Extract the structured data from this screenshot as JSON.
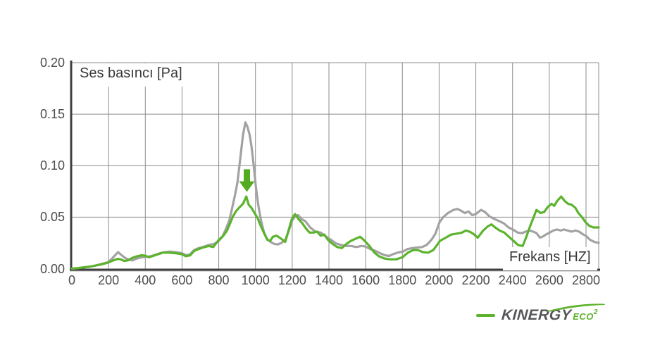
{
  "chart_data": {
    "type": "line",
    "title": "Ses basıncı [Pa]",
    "xlabel": "Frekans [HZ]",
    "ylabel": "",
    "xlim": [
      0,
      2869
    ],
    "ylim": [
      0,
      0.2
    ],
    "grid": true,
    "x_ticks": [
      0,
      200,
      400,
      600,
      800,
      1000,
      1200,
      1400,
      1600,
      1800,
      2000,
      2200,
      2400,
      2600,
      2800
    ],
    "y_ticks": [
      "0.00",
      "0.05",
      "0.10",
      "0.15",
      "0.20"
    ],
    "legend_position": "bottom-right-logo",
    "series": [
      {
        "id": "gray-line",
        "color": "#a2a2a4",
        "points": [
          [
            0,
            0
          ],
          [
            30,
            0.0005
          ],
          [
            60,
            0.0012
          ],
          [
            100,
            0.002
          ],
          [
            130,
            0.003
          ],
          [
            160,
            0.0045
          ],
          [
            195,
            0.006
          ],
          [
            215,
            0.009
          ],
          [
            235,
            0.013
          ],
          [
            252,
            0.016
          ],
          [
            268,
            0.0135
          ],
          [
            285,
            0.011
          ],
          [
            305,
            0.009
          ],
          [
            330,
            0.008
          ],
          [
            355,
            0.01
          ],
          [
            380,
            0.011
          ],
          [
            405,
            0.0115
          ],
          [
            430,
            0.012
          ],
          [
            455,
            0.0135
          ],
          [
            480,
            0.015
          ],
          [
            505,
            0.016
          ],
          [
            535,
            0.0165
          ],
          [
            565,
            0.016
          ],
          [
            600,
            0.015
          ],
          [
            622,
            0.013
          ],
          [
            645,
            0.014
          ],
          [
            665,
            0.018
          ],
          [
            690,
            0.02
          ],
          [
            715,
            0.021
          ],
          [
            745,
            0.023
          ],
          [
            775,
            0.024
          ],
          [
            800,
            0.027
          ],
          [
            820,
            0.031
          ],
          [
            840,
            0.039
          ],
          [
            858,
            0.047
          ],
          [
            872,
            0.058
          ],
          [
            888,
            0.071
          ],
          [
            902,
            0.084
          ],
          [
            918,
            0.108
          ],
          [
            932,
            0.13
          ],
          [
            945,
            0.142
          ],
          [
            956,
            0.138
          ],
          [
            968,
            0.13
          ],
          [
            978,
            0.119
          ],
          [
            990,
            0.101
          ],
          [
            1002,
            0.08
          ],
          [
            1015,
            0.062
          ],
          [
            1030,
            0.047
          ],
          [
            1045,
            0.036
          ],
          [
            1062,
            0.029
          ],
          [
            1082,
            0.026
          ],
          [
            1102,
            0.024
          ],
          [
            1122,
            0.0235
          ],
          [
            1142,
            0.025
          ],
          [
            1162,
            0.028
          ],
          [
            1180,
            0.036
          ],
          [
            1200,
            0.047
          ],
          [
            1218,
            0.051
          ],
          [
            1232,
            0.052
          ],
          [
            1252,
            0.048
          ],
          [
            1272,
            0.046
          ],
          [
            1298,
            0.04
          ],
          [
            1325,
            0.036
          ],
          [
            1355,
            0.035
          ],
          [
            1385,
            0.031
          ],
          [
            1412,
            0.028
          ],
          [
            1438,
            0.0245
          ],
          [
            1465,
            0.023
          ],
          [
            1492,
            0.022
          ],
          [
            1520,
            0.022
          ],
          [
            1550,
            0.021
          ],
          [
            1578,
            0.022
          ],
          [
            1600,
            0.0215
          ],
          [
            1625,
            0.019
          ],
          [
            1650,
            0.0175
          ],
          [
            1678,
            0.015
          ],
          [
            1705,
            0.013
          ],
          [
            1728,
            0.0123
          ],
          [
            1752,
            0.0143
          ],
          [
            1778,
            0.0157
          ],
          [
            1802,
            0.0165
          ],
          [
            1828,
            0.019
          ],
          [
            1855,
            0.02
          ],
          [
            1882,
            0.0205
          ],
          [
            1908,
            0.021
          ],
          [
            1932,
            0.023
          ],
          [
            1958,
            0.028
          ],
          [
            1980,
            0.034
          ],
          [
            2002,
            0.045
          ],
          [
            2022,
            0.05
          ],
          [
            2048,
            0.054
          ],
          [
            2078,
            0.057
          ],
          [
            2100,
            0.058
          ],
          [
            2122,
            0.056
          ],
          [
            2140,
            0.054
          ],
          [
            2160,
            0.0555
          ],
          [
            2180,
            0.052
          ],
          [
            2200,
            0.053
          ],
          [
            2228,
            0.057
          ],
          [
            2250,
            0.055
          ],
          [
            2272,
            0.051
          ],
          [
            2298,
            0.0485
          ],
          [
            2328,
            0.046
          ],
          [
            2352,
            0.044
          ],
          [
            2378,
            0.04
          ],
          [
            2402,
            0.038
          ],
          [
            2428,
            0.035
          ],
          [
            2452,
            0.0345
          ],
          [
            2472,
            0.036
          ],
          [
            2492,
            0.037
          ],
          [
            2512,
            0.036
          ],
          [
            2530,
            0.0345
          ],
          [
            2550,
            0.03
          ],
          [
            2568,
            0.0315
          ],
          [
            2585,
            0.0335
          ],
          [
            2602,
            0.035
          ],
          [
            2622,
            0.037
          ],
          [
            2642,
            0.038
          ],
          [
            2662,
            0.037
          ],
          [
            2680,
            0.038
          ],
          [
            2700,
            0.037
          ],
          [
            2722,
            0.036
          ],
          [
            2742,
            0.037
          ],
          [
            2762,
            0.036
          ],
          [
            2782,
            0.0335
          ],
          [
            2802,
            0.0315
          ],
          [
            2822,
            0.028
          ],
          [
            2845,
            0.026
          ],
          [
            2869,
            0.025
          ]
        ]
      },
      {
        "id": "green-line-kinergy-eco2",
        "color": "#5cb32c",
        "points": [
          [
            0,
            0
          ],
          [
            30,
            0.0005
          ],
          [
            60,
            0.001
          ],
          [
            100,
            0.002
          ],
          [
            130,
            0.003
          ],
          [
            160,
            0.004
          ],
          [
            200,
            0.006
          ],
          [
            225,
            0.008
          ],
          [
            250,
            0.0095
          ],
          [
            265,
            0.009
          ],
          [
            285,
            0.0075
          ],
          [
            305,
            0.008
          ],
          [
            330,
            0.0105
          ],
          [
            355,
            0.012
          ],
          [
            380,
            0.013
          ],
          [
            400,
            0.0125
          ],
          [
            420,
            0.011
          ],
          [
            445,
            0.0125
          ],
          [
            470,
            0.014
          ],
          [
            495,
            0.0155
          ],
          [
            530,
            0.0155
          ],
          [
            565,
            0.015
          ],
          [
            600,
            0.014
          ],
          [
            620,
            0.012
          ],
          [
            645,
            0.013
          ],
          [
            665,
            0.017
          ],
          [
            690,
            0.019
          ],
          [
            715,
            0.0205
          ],
          [
            745,
            0.022
          ],
          [
            770,
            0.021
          ],
          [
            800,
            0.028
          ],
          [
            825,
            0.032
          ],
          [
            845,
            0.037
          ],
          [
            862,
            0.044
          ],
          [
            878,
            0.051
          ],
          [
            895,
            0.056
          ],
          [
            915,
            0.06
          ],
          [
            932,
            0.063
          ],
          [
            950,
            0.07
          ],
          [
            963,
            0.062
          ],
          [
            978,
            0.059
          ],
          [
            995,
            0.054
          ],
          [
            1012,
            0.049
          ],
          [
            1030,
            0.041
          ],
          [
            1048,
            0.034
          ],
          [
            1065,
            0.028
          ],
          [
            1080,
            0.027
          ],
          [
            1095,
            0.031
          ],
          [
            1115,
            0.032
          ],
          [
            1140,
            0.029
          ],
          [
            1162,
            0.026
          ],
          [
            1180,
            0.037
          ],
          [
            1198,
            0.048
          ],
          [
            1215,
            0.053
          ],
          [
            1235,
            0.048
          ],
          [
            1255,
            0.044
          ],
          [
            1275,
            0.039
          ],
          [
            1295,
            0.035
          ],
          [
            1315,
            0.035
          ],
          [
            1335,
            0.036
          ],
          [
            1355,
            0.032
          ],
          [
            1375,
            0.033
          ],
          [
            1395,
            0.028
          ],
          [
            1420,
            0.024
          ],
          [
            1445,
            0.021
          ],
          [
            1470,
            0.02
          ],
          [
            1495,
            0.024
          ],
          [
            1520,
            0.027
          ],
          [
            1545,
            0.029
          ],
          [
            1570,
            0.031
          ],
          [
            1595,
            0.027
          ],
          [
            1620,
            0.022
          ],
          [
            1645,
            0.016
          ],
          [
            1672,
            0.012
          ],
          [
            1700,
            0.01
          ],
          [
            1730,
            0.009
          ],
          [
            1765,
            0.009
          ],
          [
            1800,
            0.011
          ],
          [
            1830,
            0.0155
          ],
          [
            1858,
            0.018
          ],
          [
            1885,
            0.018
          ],
          [
            1912,
            0.016
          ],
          [
            1940,
            0.0155
          ],
          [
            1968,
            0.018
          ],
          [
            1985,
            0.022
          ],
          [
            2005,
            0.027
          ],
          [
            2035,
            0.03
          ],
          [
            2065,
            0.033
          ],
          [
            2095,
            0.034
          ],
          [
            2125,
            0.035
          ],
          [
            2145,
            0.037
          ],
          [
            2165,
            0.036
          ],
          [
            2185,
            0.034
          ],
          [
            2210,
            0.03
          ],
          [
            2240,
            0.037
          ],
          [
            2265,
            0.041
          ],
          [
            2285,
            0.043
          ],
          [
            2305,
            0.04
          ],
          [
            2330,
            0.037
          ],
          [
            2355,
            0.035
          ],
          [
            2380,
            0.031
          ],
          [
            2405,
            0.027
          ],
          [
            2430,
            0.023
          ],
          [
            2455,
            0.022
          ],
          [
            2475,
            0.031
          ],
          [
            2495,
            0.041
          ],
          [
            2515,
            0.05
          ],
          [
            2530,
            0.057
          ],
          [
            2552,
            0.054
          ],
          [
            2572,
            0.055
          ],
          [
            2592,
            0.06
          ],
          [
            2612,
            0.063
          ],
          [
            2627,
            0.061
          ],
          [
            2642,
            0.0655
          ],
          [
            2665,
            0.07
          ],
          [
            2685,
            0.0655
          ],
          [
            2702,
            0.063
          ],
          [
            2722,
            0.062
          ],
          [
            2742,
            0.059
          ],
          [
            2758,
            0.054
          ],
          [
            2778,
            0.05
          ],
          [
            2798,
            0.045
          ],
          [
            2818,
            0.0415
          ],
          [
            2840,
            0.04
          ],
          [
            2869,
            0.04
          ]
        ]
      }
    ],
    "annotation": {
      "shape": "arrow-down",
      "x_hz": 953,
      "from_pa": 0.0965,
      "to_pa": 0.0745,
      "color": "#54aa20"
    }
  },
  "labels": {
    "title_inside": "Ses basıncı [Pa]",
    "xlabel_inside": "Frekans [HZ]"
  },
  "logo": {
    "wordmark": "KINERGY",
    "sub": "ECO",
    "sup": "2",
    "dash_color": "#5db32d",
    "text_color": "#55565a",
    "green_color": "#5cb32c"
  },
  "colors": {
    "grid": "#8c8c8c",
    "axis": "#3f3f3f",
    "tick_text": "#4d4d4d",
    "background": "#ffffff"
  }
}
